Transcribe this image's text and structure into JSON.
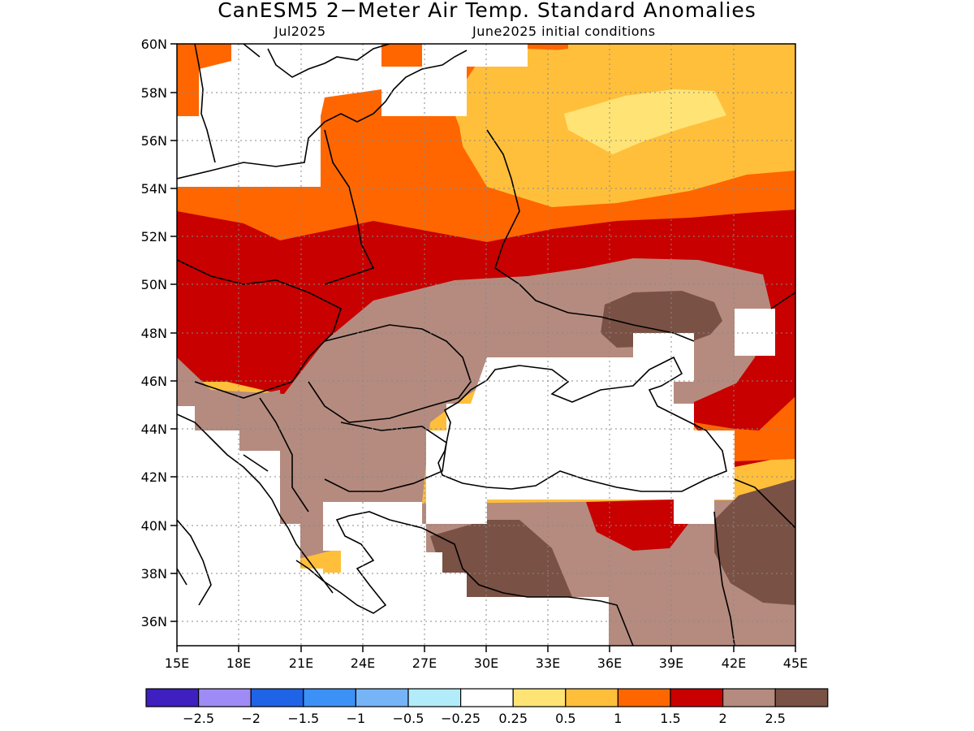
{
  "title": "CanESM5 2−Meter Air Temp. Standard Anomalies",
  "subtitle_left": "Jul2025",
  "subtitle_right": "June2025 initial conditions",
  "lat_labels": [
    "60N",
    "58N",
    "56N",
    "54N",
    "52N",
    "50N",
    "48N",
    "46N",
    "44N",
    "42N",
    "40N",
    "38N",
    "36N"
  ],
  "lon_labels": [
    "15E",
    "18E",
    "21E",
    "24E",
    "27E",
    "30E",
    "33E",
    "36E",
    "39E",
    "42E",
    "45E"
  ],
  "colorbar": {
    "colors": [
      "#3f1fbf",
      "#9f8bf5",
      "#1f63e6",
      "#3b91f5",
      "#76b4f8",
      "#b2ecfb",
      "#ffffff",
      "#ffe475",
      "#ffbf3b",
      "#ff6600",
      "#c80000",
      "#b58b7f",
      "#7a5145"
    ],
    "labels": [
      "−2.5",
      "−2",
      "−1.5",
      "−1",
      "−0.5",
      "−0.25",
      "0.25",
      "0.5",
      "1",
      "1.5",
      "2",
      "2.5"
    ]
  },
  "map_colors": {
    "white": "#ffffff",
    "yellow": "#ffe475",
    "light_orange": "#ffbf3b",
    "orange": "#ff6600",
    "red": "#c80000",
    "light_brown": "#b58b7f",
    "dark_brown": "#7a5145"
  }
}
